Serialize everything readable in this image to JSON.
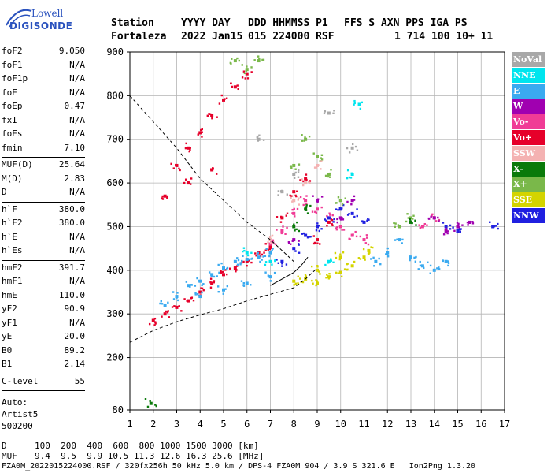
{
  "logo": {
    "line1": "Lowell",
    "line2": "DIGISONDE"
  },
  "header": {
    "row1": [
      "Station",
      "YYYY DAY",
      "DDD HHMMSS P1",
      "FFS S AXN PPS IGA PS"
    ],
    "row2": [
      "Fortaleza",
      "2022 Jan15",
      "015 224000 RSF",
      "1 714 100 10+ 11"
    ]
  },
  "params": {
    "group1": [
      {
        "k": "foF2",
        "v": "9.050"
      },
      {
        "k": "foF1",
        "v": "N/A"
      },
      {
        "k": "foF1p",
        "v": "N/A"
      },
      {
        "k": "foE",
        "v": "N/A"
      },
      {
        "k": "foEp",
        "v": "0.47"
      },
      {
        "k": "fxI",
        "v": "N/A"
      },
      {
        "k": "foEs",
        "v": "N/A"
      },
      {
        "k": "fmin",
        "v": "7.10"
      }
    ],
    "group2": [
      {
        "k": "MUF(D)",
        "v": "25.64"
      },
      {
        "k": "M(D)",
        "v": "2.83"
      },
      {
        "k": "D",
        "v": "N/A"
      }
    ],
    "group3": [
      {
        "k": "h`F",
        "v": "380.0"
      },
      {
        "k": "h`F2",
        "v": "380.0"
      },
      {
        "k": "h`E",
        "v": "N/A"
      },
      {
        "k": "h`Es",
        "v": "N/A"
      }
    ],
    "group4": [
      {
        "k": "hmF2",
        "v": "391.7"
      },
      {
        "k": "hmF1",
        "v": "N/A"
      },
      {
        "k": "hmE",
        "v": "110.0"
      },
      {
        "k": "yF2",
        "v": "90.9"
      },
      {
        "k": "yF1",
        "v": "N/A"
      },
      {
        "k": "yE",
        "v": "20.0"
      },
      {
        "k": "B0",
        "v": "89.2"
      },
      {
        "k": "B1",
        "v": "2.14"
      }
    ],
    "group5": [
      {
        "k": "C-level",
        "v": "55"
      }
    ],
    "extra": [
      "Auto:",
      "Artist5",
      "500200"
    ]
  },
  "legend": [
    {
      "label": "NoVal",
      "color": "#a8a8a8"
    },
    {
      "label": "NNE",
      "color": "#00e5ee"
    },
    {
      "label": "E",
      "color": "#3aaaf0"
    },
    {
      "label": "W",
      "color": "#a000b0"
    },
    {
      "label": "Vo-",
      "color": "#f03c96"
    },
    {
      "label": "Vo+",
      "color": "#e6002a"
    },
    {
      "label": "SSW",
      "color": "#f4b2b2"
    },
    {
      "label": "X-",
      "color": "#0a7a0a"
    },
    {
      "label": "X+",
      "color": "#7ab84a"
    },
    {
      "label": "SSE",
      "color": "#d4d400"
    },
    {
      "label": "NNW",
      "color": "#2020e0"
    }
  ],
  "chart_data": {
    "type": "scatter",
    "xlim": [
      1,
      17
    ],
    "ylim": [
      80,
      900
    ],
    "x_ticks": [
      "1",
      "2",
      "3",
      "4",
      "5",
      "6",
      "7",
      "8",
      "9",
      "10",
      "11",
      "12",
      "13",
      "14",
      "15",
      "16",
      "17"
    ],
    "y_ticks": [
      "80",
      "200",
      "300",
      "400",
      "500",
      "600",
      "700",
      "800",
      "900"
    ],
    "grid": true,
    "series": [
      {
        "name": "Vo+",
        "points": [
          [
            2,
            285
          ],
          [
            2.5,
            300
          ],
          [
            3,
            315
          ],
          [
            3.5,
            330
          ],
          [
            4,
            350
          ],
          [
            4.5,
            370
          ],
          [
            5,
            390
          ],
          [
            5.5,
            405
          ],
          [
            6,
            420
          ],
          [
            6.5,
            440
          ],
          [
            7,
            455
          ],
          [
            3,
            640
          ],
          [
            3.5,
            680
          ],
          [
            4,
            715
          ],
          [
            4.5,
            755
          ],
          [
            5,
            790
          ],
          [
            5.5,
            820
          ],
          [
            6,
            850
          ],
          [
            2.5,
            570
          ],
          [
            3.5,
            600
          ],
          [
            4.5,
            630
          ],
          [
            7.5,
            520
          ],
          [
            8,
            580
          ],
          [
            8.5,
            610
          ],
          [
            9,
            470
          ],
          [
            9.5,
            510
          ]
        ]
      },
      {
        "name": "E",
        "points": [
          [
            2.5,
            320
          ],
          [
            3,
            340
          ],
          [
            3.5,
            365
          ],
          [
            4,
            375
          ],
          [
            4.5,
            390
          ],
          [
            5,
            405
          ],
          [
            5.5,
            420
          ],
          [
            6,
            425
          ],
          [
            6.5,
            430
          ],
          [
            7,
            440
          ],
          [
            4,
            340
          ],
          [
            5,
            355
          ],
          [
            6,
            370
          ],
          [
            7,
            385
          ],
          [
            11.5,
            420
          ],
          [
            12,
            440
          ],
          [
            12.5,
            470
          ],
          [
            13,
            430
          ],
          [
            13.5,
            410
          ],
          [
            14,
            400
          ],
          [
            14.5,
            420
          ]
        ]
      },
      {
        "name": "Vo-",
        "points": [
          [
            7,
            460
          ],
          [
            7.5,
            490
          ],
          [
            8,
            530
          ],
          [
            8.5,
            560
          ],
          [
            9,
            540
          ],
          [
            9.5,
            520
          ],
          [
            10,
            500
          ],
          [
            10.5,
            480
          ],
          [
            11,
            470
          ],
          [
            13.5,
            500
          ],
          [
            14,
            520
          ]
        ]
      },
      {
        "name": "NNW",
        "points": [
          [
            7.5,
            420
          ],
          [
            8,
            450
          ],
          [
            8.5,
            480
          ],
          [
            9,
            500
          ],
          [
            9.5,
            520
          ],
          [
            10,
            540
          ],
          [
            10.5,
            530
          ],
          [
            11,
            510
          ],
          [
            14.5,
            500
          ],
          [
            15,
            490
          ],
          [
            16.5,
            500
          ]
        ]
      },
      {
        "name": "SSE",
        "points": [
          [
            8,
            375
          ],
          [
            8.5,
            380
          ],
          [
            9,
            370
          ],
          [
            9.5,
            385
          ],
          [
            10,
            395
          ],
          [
            10.5,
            410
          ],
          [
            11,
            430
          ],
          [
            11.2,
            445
          ],
          [
            9,
            400
          ],
          [
            10,
            430
          ]
        ]
      },
      {
        "name": "X+",
        "points": [
          [
            5.5,
            880
          ],
          [
            6,
            860
          ],
          [
            6.5,
            880
          ],
          [
            8,
            640
          ],
          [
            8.5,
            700
          ],
          [
            9,
            660
          ],
          [
            9.5,
            620
          ],
          [
            10,
            560
          ],
          [
            12.5,
            500
          ],
          [
            13,
            520
          ]
        ]
      },
      {
        "name": "X-",
        "points": [
          [
            1.9,
            95
          ],
          [
            8,
            500
          ],
          [
            8.5,
            540
          ],
          [
            13,
            510
          ]
        ]
      },
      {
        "name": "W",
        "points": [
          [
            8,
            470
          ],
          [
            9,
            560
          ],
          [
            10,
            520
          ],
          [
            10.5,
            560
          ],
          [
            14,
            520
          ],
          [
            14.5,
            490
          ],
          [
            15,
            500
          ],
          [
            15.5,
            510
          ]
        ]
      },
      {
        "name": "NNE",
        "points": [
          [
            6,
            440
          ],
          [
            7,
            420
          ],
          [
            9.5,
            420
          ],
          [
            10.5,
            620
          ],
          [
            10.8,
            780
          ]
        ]
      },
      {
        "name": "SSW",
        "points": [
          [
            7,
            470
          ],
          [
            8,
            560
          ],
          [
            8.5,
            600
          ],
          [
            9,
            640
          ]
        ]
      },
      {
        "name": "NoVal",
        "points": [
          [
            6.5,
            700
          ],
          [
            7.5,
            580
          ],
          [
            8,
            620
          ],
          [
            9.5,
            760
          ],
          [
            10.5,
            680
          ]
        ]
      }
    ],
    "profile_dashed_upper": [
      [
        1,
        800
      ],
      [
        2,
        740
      ],
      [
        3,
        680
      ],
      [
        4,
        610
      ],
      [
        5,
        560
      ],
      [
        6,
        510
      ],
      [
        7,
        470
      ],
      [
        7.5,
        445
      ],
      [
        8,
        420
      ]
    ],
    "profile_dashed_lower": [
      [
        1,
        235
      ],
      [
        2,
        262
      ],
      [
        3,
        282
      ],
      [
        4,
        298
      ],
      [
        5,
        312
      ],
      [
        6,
        330
      ],
      [
        7,
        345
      ],
      [
        8,
        360
      ],
      [
        8.5,
        380
      ],
      [
        9,
        405
      ]
    ],
    "profile_solid": [
      [
        7,
        365
      ],
      [
        7.5,
        380
      ],
      [
        8,
        395
      ],
      [
        8.3,
        410
      ],
      [
        8.6,
        430
      ]
    ]
  },
  "footer": {
    "d_label": "D",
    "d_values": "100  200  400  600  800 1000 1500 3000 [km]",
    "muf_label": "MUF",
    "muf_values": "9.4  9.5  9.9 10.5 11.3 12.6 16.3 25.6 [MHz]",
    "line3": "FZA0M_2022015224000.RSF / 320fx256h 50 kHz 5.0 km / DPS-4 FZA0M 904 / 3.9 S 321.6 E   Ion2Png 1.3.20"
  }
}
